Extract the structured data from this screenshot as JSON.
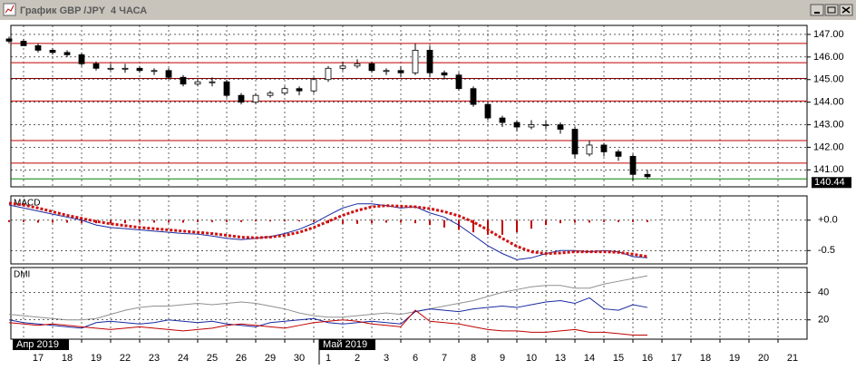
{
  "window": {
    "title": "График GBP /JPY  4 ЧАСА"
  },
  "xtick_labels": [
    "17",
    "18",
    "19",
    "22",
    "23",
    "24",
    "25",
    "26",
    "29",
    "30",
    "1",
    "2",
    "3",
    "6",
    "7",
    "8",
    "9",
    "10",
    "13",
    "14",
    "15",
    "16",
    "17",
    "18",
    "19",
    "20",
    "21"
  ],
  "month_labels": [
    "Апр 2019",
    "Май 2019"
  ],
  "chart_data": [
    {
      "type": "candlestick",
      "open": [
        146.8,
        146.7,
        146.5,
        146.3,
        146.2,
        146.1,
        145.7,
        145.5,
        145.5,
        145.5,
        145.4,
        145.4,
        145.1,
        144.8,
        144.9,
        144.9,
        144.3,
        144.0,
        144.3,
        144.4,
        144.6,
        144.5,
        145.0,
        145.5,
        145.6,
        145.7,
        145.4,
        145.4,
        145.3,
        146.3,
        145.3,
        145.2,
        144.6,
        143.9,
        143.3,
        143.1,
        142.9,
        143.0,
        143.0,
        142.8,
        141.7,
        142.1,
        141.8,
        141.6,
        140.8
      ],
      "high": [
        146.9,
        146.8,
        146.6,
        146.4,
        146.3,
        146.2,
        145.8,
        145.7,
        145.7,
        145.6,
        145.5,
        145.5,
        145.2,
        145.0,
        145.1,
        145.0,
        144.4,
        144.4,
        144.5,
        144.7,
        144.7,
        145.1,
        145.6,
        145.8,
        145.9,
        145.8,
        145.5,
        145.6,
        146.6,
        146.5,
        145.4,
        145.3,
        144.7,
        144.0,
        143.4,
        143.2,
        143.2,
        143.2,
        143.1,
        142.9,
        142.3,
        142.2,
        141.9,
        141.7,
        141.0
      ],
      "low": [
        146.6,
        146.5,
        146.2,
        146.1,
        146.0,
        145.6,
        145.4,
        145.4,
        145.3,
        145.3,
        145.2,
        145.0,
        144.7,
        144.7,
        144.7,
        144.2,
        143.9,
        143.9,
        144.2,
        144.3,
        144.3,
        144.4,
        144.9,
        145.4,
        145.5,
        145.3,
        145.2,
        145.1,
        145.2,
        145.1,
        145.0,
        144.5,
        143.8,
        143.2,
        142.9,
        142.7,
        142.8,
        142.8,
        142.6,
        141.5,
        141.6,
        141.6,
        141.4,
        140.5,
        140.6
      ],
      "close": [
        146.7,
        146.5,
        146.3,
        146.2,
        146.1,
        145.7,
        145.5,
        145.5,
        145.5,
        145.4,
        145.4,
        145.1,
        144.8,
        144.9,
        144.9,
        144.3,
        144.0,
        144.3,
        144.4,
        144.6,
        144.5,
        145.0,
        145.5,
        145.6,
        145.7,
        145.4,
        145.4,
        145.3,
        146.3,
        145.3,
        145.2,
        144.6,
        143.9,
        143.3,
        143.1,
        142.9,
        143.0,
        143.0,
        142.8,
        141.7,
        142.1,
        141.8,
        141.6,
        140.8,
        140.7
      ],
      "hlines": [
        {
          "value": 146.6,
          "color": "#c00000"
        },
        {
          "value": 145.75,
          "color": "#c00000"
        },
        {
          "value": 145.05,
          "color": "#800000"
        },
        {
          "value": 144.05,
          "color": "#c00000"
        },
        {
          "value": 142.3,
          "color": "#c00000"
        },
        {
          "value": 141.3,
          "color": "#c00000"
        },
        {
          "value": 140.6,
          "color": "#008000"
        }
      ],
      "last_price": 140.44,
      "ylim": [
        140.25,
        147.4
      ],
      "yticks": [
        {
          "value": 141,
          "label": "141.00"
        },
        {
          "value": 142,
          "label": "142.00"
        },
        {
          "value": 143,
          "label": "143.00"
        },
        {
          "value": 144,
          "label": "144.00"
        },
        {
          "value": 145,
          "label": "145.00"
        },
        {
          "value": 146,
          "label": "146.00"
        },
        {
          "value": 147,
          "label": "147.00"
        }
      ],
      "grid": true
    },
    {
      "type": "line",
      "label": "MACD",
      "series": [
        {
          "style": "bars",
          "color": "#c00000",
          "values": [
            -0.03,
            -0.03,
            -0.04,
            -0.04,
            -0.04,
            -0.05,
            -0.05,
            -0.05,
            -0.05,
            -0.04,
            -0.04,
            -0.04,
            -0.04,
            -0.03,
            -0.03,
            -0.03,
            -0.03,
            -0.02,
            -0.02,
            -0.02,
            -0.02,
            -0.03,
            -0.05,
            -0.06,
            -0.06,
            -0.05,
            -0.04,
            -0.04,
            -0.05,
            -0.08,
            -0.12,
            -0.16,
            -0.2,
            -0.24,
            -0.24,
            -0.2,
            -0.14,
            -0.08,
            -0.05,
            -0.04,
            -0.04,
            -0.03,
            -0.03,
            -0.03,
            -0.03
          ]
        },
        {
          "style": "solid",
          "color": "#1a2aa0",
          "values": [
            0.25,
            0.2,
            0.15,
            0.1,
            0.05,
            0.0,
            -0.08,
            -0.12,
            -0.14,
            -0.16,
            -0.18,
            -0.2,
            -0.22,
            -0.23,
            -0.26,
            -0.3,
            -0.32,
            -0.3,
            -0.27,
            -0.22,
            -0.15,
            -0.05,
            0.08,
            0.2,
            0.27,
            0.27,
            0.24,
            0.2,
            0.22,
            0.12,
            0.05,
            -0.08,
            -0.25,
            -0.42,
            -0.55,
            -0.65,
            -0.62,
            -0.55,
            -0.5,
            -0.5,
            -0.52,
            -0.5,
            -0.52,
            -0.6,
            -0.62
          ]
        },
        {
          "style": "dotted",
          "color": "#d01010",
          "values": [
            0.28,
            0.25,
            0.2,
            0.14,
            0.08,
            0.03,
            -0.02,
            -0.06,
            -0.09,
            -0.12,
            -0.14,
            -0.16,
            -0.18,
            -0.2,
            -0.22,
            -0.25,
            -0.28,
            -0.29,
            -0.28,
            -0.25,
            -0.2,
            -0.12,
            -0.02,
            0.08,
            0.16,
            0.22,
            0.24,
            0.23,
            0.22,
            0.19,
            0.14,
            0.07,
            -0.03,
            -0.16,
            -0.3,
            -0.43,
            -0.52,
            -0.55,
            -0.54,
            -0.52,
            -0.52,
            -0.52,
            -0.53,
            -0.56,
            -0.6
          ]
        }
      ],
      "ylim": [
        -0.72,
        0.4
      ],
      "yticks": [
        {
          "value": 0,
          "label": "+0.0"
        },
        {
          "value": -0.5,
          "label": "-0.5"
        }
      ],
      "grid": true
    },
    {
      "type": "line",
      "label": "DMI",
      "series": [
        {
          "style": "solid",
          "color": "#909090",
          "values": [
            24,
            23,
            22,
            21,
            20,
            20,
            21,
            24,
            27,
            29,
            30,
            30,
            31,
            32,
            31,
            32,
            33,
            32,
            30,
            28,
            25,
            23,
            22,
            22,
            23,
            24,
            25,
            24,
            26,
            28,
            30,
            32,
            34,
            37,
            40,
            42,
            44,
            45,
            45,
            43,
            43,
            46,
            48,
            50,
            52
          ]
        },
        {
          "style": "solid",
          "color": "#1a2aa0",
          "values": [
            20,
            18,
            17,
            16,
            15,
            14,
            18,
            19,
            18,
            17,
            18,
            20,
            19,
            18,
            19,
            17,
            16,
            15,
            18,
            19,
            20,
            21,
            18,
            17,
            18,
            19,
            18,
            17,
            26,
            28,
            27,
            26,
            28,
            29,
            30,
            29,
            31,
            33,
            34,
            32,
            36,
            28,
            27,
            31,
            29
          ]
        },
        {
          "style": "solid",
          "color": "#c00000",
          "values": [
            18,
            17,
            16,
            17,
            16,
            15,
            14,
            13,
            14,
            15,
            14,
            13,
            12,
            13,
            14,
            16,
            17,
            16,
            15,
            14,
            16,
            18,
            19,
            20,
            19,
            17,
            16,
            15,
            27,
            19,
            18,
            17,
            15,
            13,
            12,
            12,
            11,
            11,
            12,
            13,
            11,
            11,
            10,
            9,
            9
          ]
        }
      ],
      "ylim": [
        6,
        58
      ],
      "yticks": [
        40,
        20
      ],
      "grid": true
    }
  ]
}
